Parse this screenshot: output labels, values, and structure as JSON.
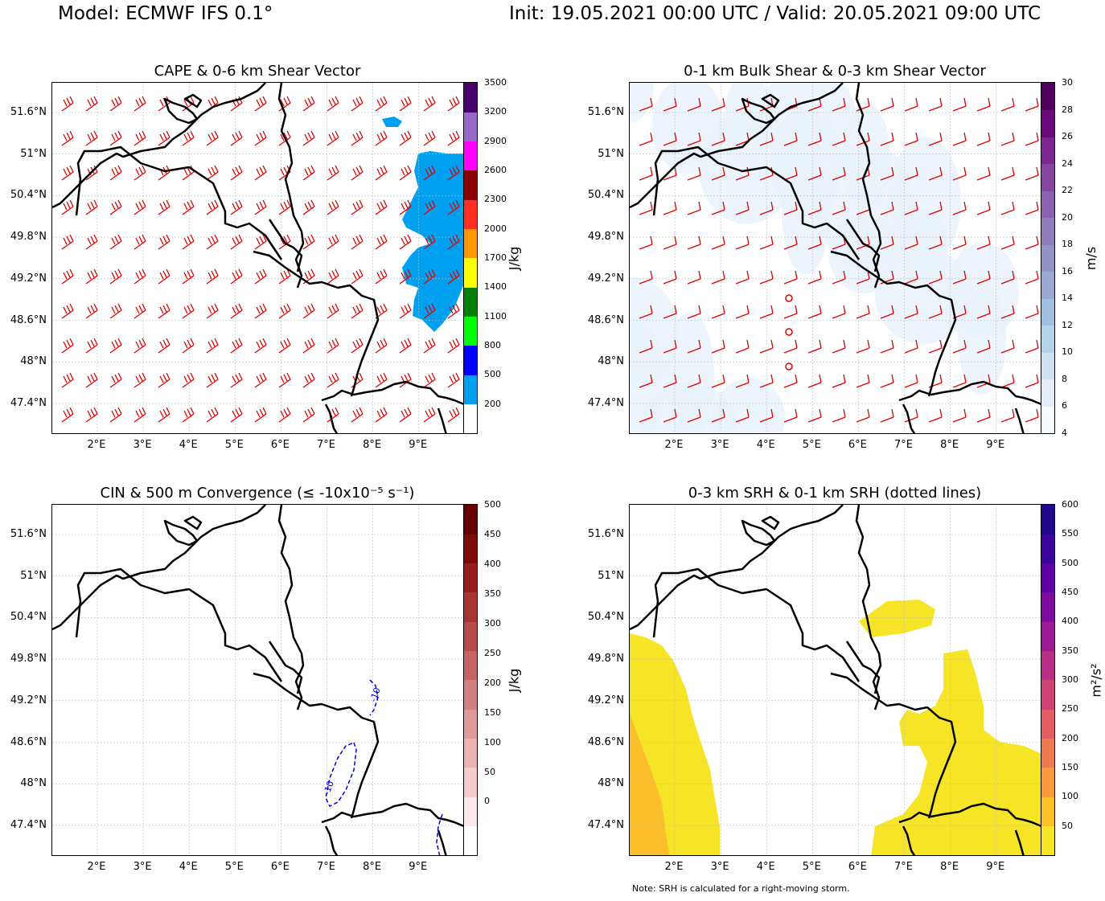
{
  "header": {
    "model": "Model: ECMWF IFS 0.1°",
    "init_valid": "Init: 19.05.2021 00:00 UTC / Valid: 20.05.2021 09:00 UTC"
  },
  "note": "Note: SRH is calculated for a right-moving storm.",
  "axes": {
    "lat_labels": [
      "51.6°N",
      "51°N",
      "50.4°N",
      "49.8°N",
      "49.2°N",
      "48.6°N",
      "48°N",
      "47.4°N"
    ],
    "lat_values": [
      51.6,
      51.0,
      50.4,
      49.8,
      49.2,
      48.6,
      48.0,
      47.4
    ],
    "lon_labels": [
      "2°E",
      "3°E",
      "4°E",
      "5°E",
      "6°E",
      "7°E",
      "8°E",
      "9°E"
    ],
    "lon_values": [
      2,
      3,
      4,
      5,
      6,
      7,
      8,
      9
    ],
    "lon_range": [
      1.0,
      10.0
    ],
    "lat_range": [
      47.0,
      52.0
    ]
  },
  "panels": [
    {
      "id": "cape",
      "title": "CAPE & 0-6 km Shear Vector",
      "colorbar_label": "J/kg",
      "colorbar_ticks": [
        "3500",
        "3200",
        "2900",
        "2600",
        "2300",
        "2000",
        "1700",
        "1400",
        "1100",
        "800",
        "500",
        "200"
      ],
      "colorbar_colors": [
        "#ffffff",
        "#00a0f0",
        "#0000ff",
        "#00ff00",
        "#008000",
        "#ffff00",
        "#ff9900",
        "#ff3020",
        "#8b0000",
        "#ff00ff",
        "#9966cc",
        "#4b0070"
      ],
      "barb_color": "#e00000"
    },
    {
      "id": "shear",
      "title": "0-1 km Bulk Shear & 0-3 km Shear Vector",
      "colorbar_label": "m/s",
      "colorbar_ticks": [
        "30",
        "28",
        "26",
        "24",
        "22",
        "20",
        "18",
        "16",
        "14",
        "12",
        "10",
        "8",
        "6",
        "4"
      ],
      "colorbar_colors": [
        "#f7fbff",
        "#e3eef8",
        "#cfe1f2",
        "#b5d3e8",
        "#a3bfdf",
        "#9aa8d3",
        "#9393c6",
        "#8f7ebb",
        "#8b62ad",
        "#87459f",
        "#7d2590",
        "#6a0a7c",
        "#52005f"
      ],
      "barb_color": "#e00000"
    },
    {
      "id": "cin",
      "title": "CIN & 500 m Convergence (≤ -10x10⁻⁵ s⁻¹)",
      "colorbar_label": "J/kg",
      "colorbar_ticks": [
        "500",
        "450",
        "400",
        "350",
        "300",
        "250",
        "200",
        "150",
        "100",
        "50",
        "0"
      ],
      "colorbar_colors": [
        "#ffffff",
        "#fbe9e9",
        "#f4cccc",
        "#ecb3b3",
        "#e19999",
        "#d47f7f",
        "#c66565",
        "#b84c4c",
        "#a83333",
        "#971c1c",
        "#7f0a0a",
        "#660000"
      ],
      "contour_label": "-10",
      "contour_color": "#0000dd"
    },
    {
      "id": "srh",
      "title": "0-3 km SRH & 0-1 km SRH (dotted lines)",
      "colorbar_label": "m²/s²",
      "colorbar_ticks": [
        "600",
        "550",
        "500",
        "450",
        "400",
        "350",
        "300",
        "250",
        "200",
        "150",
        "100",
        "50"
      ],
      "colorbar_colors": [
        "#f5e526",
        "#fbc12a",
        "#fb9a3c",
        "#f07a50",
        "#e35d62",
        "#cf4475",
        "#b72f86",
        "#9c1a94",
        "#7e0aa0",
        "#5e02a6",
        "#3d049b",
        "#20078c"
      ],
      "fill_color": "#f5e526",
      "fill_color_2": "#fbbf2a"
    }
  ]
}
